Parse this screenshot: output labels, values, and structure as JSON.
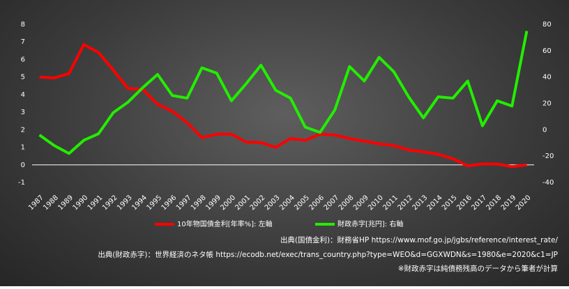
{
  "chart_data": {
    "type": "line",
    "categories": [
      "1987",
      "1988",
      "1989",
      "1990",
      "1991",
      "1992",
      "1993",
      "1994",
      "1995",
      "1996",
      "1997",
      "1998",
      "1999",
      "2000",
      "2001",
      "2002",
      "2003",
      "2004",
      "2005",
      "2006",
      "2007",
      "2008",
      "2009",
      "2010",
      "2011",
      "2012",
      "2013",
      "2014",
      "2015",
      "2016",
      "2017",
      "2018",
      "2019",
      "2020"
    ],
    "series": [
      {
        "name": "10年物国債金利[年率%]: 左軸",
        "color": "#ff0000",
        "axis": "y",
        "values": [
          5.0,
          4.95,
          5.2,
          6.85,
          6.4,
          5.4,
          4.35,
          4.3,
          3.45,
          3.05,
          2.4,
          1.55,
          1.75,
          1.75,
          1.3,
          1.27,
          1.0,
          1.5,
          1.4,
          1.75,
          1.7,
          1.5,
          1.35,
          1.2,
          1.1,
          0.85,
          0.75,
          0.6,
          0.35,
          -0.05,
          0.05,
          0.05,
          -0.1,
          0.0
        ]
      },
      {
        "name": "財政赤字[兆円]: 右軸",
        "color": "#22ee00",
        "axis": "y2",
        "values": [
          -4,
          -12,
          -18,
          -8,
          -3,
          13,
          21,
          32,
          42,
          26,
          24,
          47,
          43,
          22,
          35,
          49,
          30,
          24,
          2,
          -2,
          15,
          48,
          37,
          55,
          44,
          25,
          9,
          25,
          24,
          37,
          3,
          22,
          18,
          75
        ]
      }
    ],
    "ylim": [
      -1,
      8
    ],
    "yticks": [
      -1,
      0,
      1,
      2,
      3,
      4,
      5,
      6,
      7,
      8
    ],
    "y2lim": [
      -40,
      80
    ],
    "y2ticks": [
      -40,
      -20,
      0,
      20,
      40,
      60,
      80
    ],
    "zero_line": true,
    "notes": [
      "出典(国債金利)：財務省HP https://www.mof.go.jp/jgbs/reference/interest_rate/",
      "出典(財政赤字)：世界経済のネタ帳 https://ecodb.net/exec/trans_country.php?type=WEO&d=GGXWDN&s=1980&e=2020&c1=JP",
      "※財政赤字は純債務残高のデータから筆者が計算"
    ]
  }
}
